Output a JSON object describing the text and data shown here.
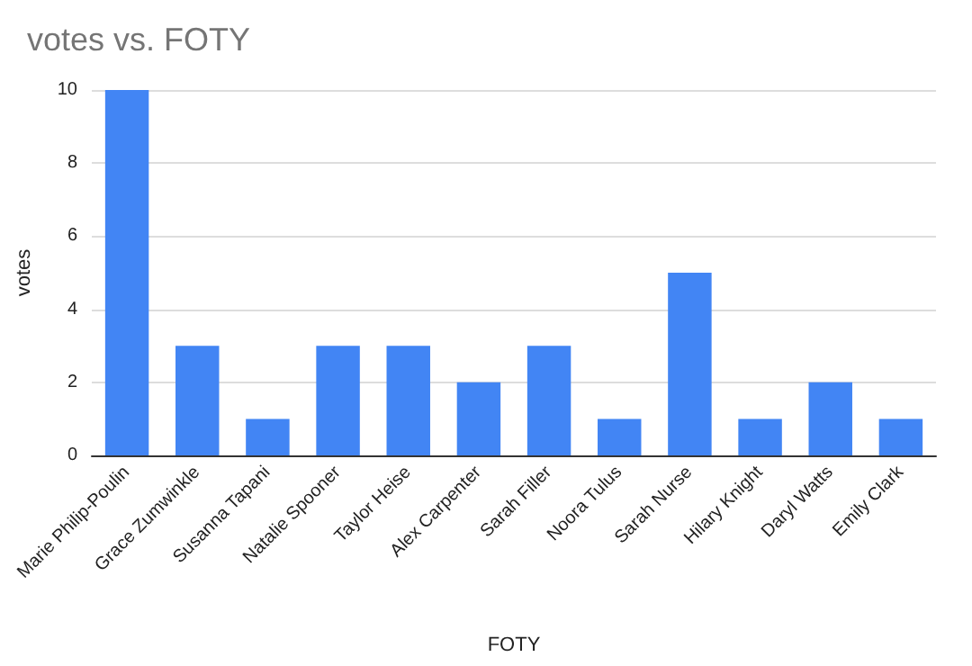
{
  "chart_data": {
    "type": "bar",
    "title": "votes vs. FOTY",
    "xlabel": "FOTY",
    "ylabel": "votes",
    "categories": [
      "Marie Philip-Poulin",
      "Grace Zumwinkle",
      "Susanna Tapani",
      "Natalie Spooner",
      "Taylor Heise",
      "Alex Carpenter",
      "Sarah Filler",
      "Noora Tulus",
      "Sarah Nurse",
      "Hilary Knight",
      "Daryl Watts",
      "Emily Clark"
    ],
    "values": [
      10,
      3,
      1,
      3,
      3,
      2,
      3,
      1,
      5,
      1,
      2,
      1
    ],
    "color": "#4285f4",
    "ylim": [
      0,
      10
    ],
    "yticks": [
      0,
      2,
      4,
      6,
      8,
      10
    ],
    "grid": "y"
  }
}
